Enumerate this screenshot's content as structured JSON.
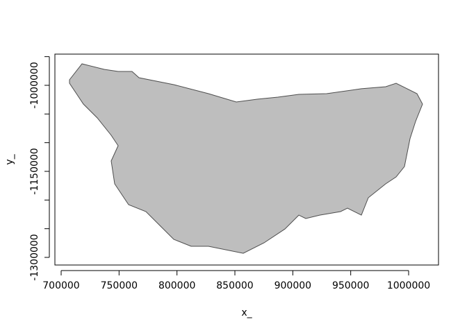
{
  "chart_data": {
    "type": "polygon",
    "xlabel": "x_",
    "ylabel": "y_",
    "fill": "#bebebe",
    "stroke": "#4d4d4d",
    "x": [
      707200,
      718000,
      737200,
      749200,
      761200,
      767200,
      797200,
      827200,
      851200,
      869200,
      887200,
      905200,
      929200,
      959200,
      980200,
      989200,
      1007200,
      1012000,
      1006000,
      1001200,
      996400,
      989200,
      980200,
      965200,
      959200,
      947200,
      941200,
      923200,
      911200,
      905200,
      893200,
      875200,
      857200,
      827200,
      812200,
      797200,
      785200,
      773200,
      758200,
      746200,
      743200,
      749200,
      743200,
      731200,
      719200,
      713200,
      707200
    ],
    "y": [
      -990300,
      -962500,
      -972200,
      -975800,
      -975800,
      -986700,
      -998800,
      -1014500,
      -1029000,
      -1024200,
      -1020600,
      -1015700,
      -1014500,
      -1006000,
      -1002400,
      -996400,
      -1014500,
      -1032700,
      -1062900,
      -1093100,
      -1141500,
      -1159700,
      -1171800,
      -1196000,
      -1226300,
      -1214100,
      -1220200,
      -1226300,
      -1232300,
      -1226300,
      -1250500,
      -1274600,
      -1292800,
      -1280700,
      -1280700,
      -1268600,
      -1244400,
      -1220200,
      -1208100,
      -1171800,
      -1131900,
      -1105200,
      -1087100,
      -1056900,
      -1032700,
      -1014500,
      -996400
    ],
    "xlim": [
      694600,
      1025800
    ],
    "ylim": [
      -1313300,
      -945600
    ],
    "xticks": [
      700000,
      750000,
      800000,
      850000,
      900000,
      950000,
      1000000
    ],
    "yticks": [
      {
        "value": -950000,
        "label": null
      },
      -1000000,
      {
        "value": -1050000,
        "label": null
      },
      {
        "value": -1100000,
        "label": null
      },
      -1150000,
      {
        "value": -1200000,
        "label": null
      },
      {
        "value": -1250000,
        "label": null
      },
      -1300000
    ]
  }
}
